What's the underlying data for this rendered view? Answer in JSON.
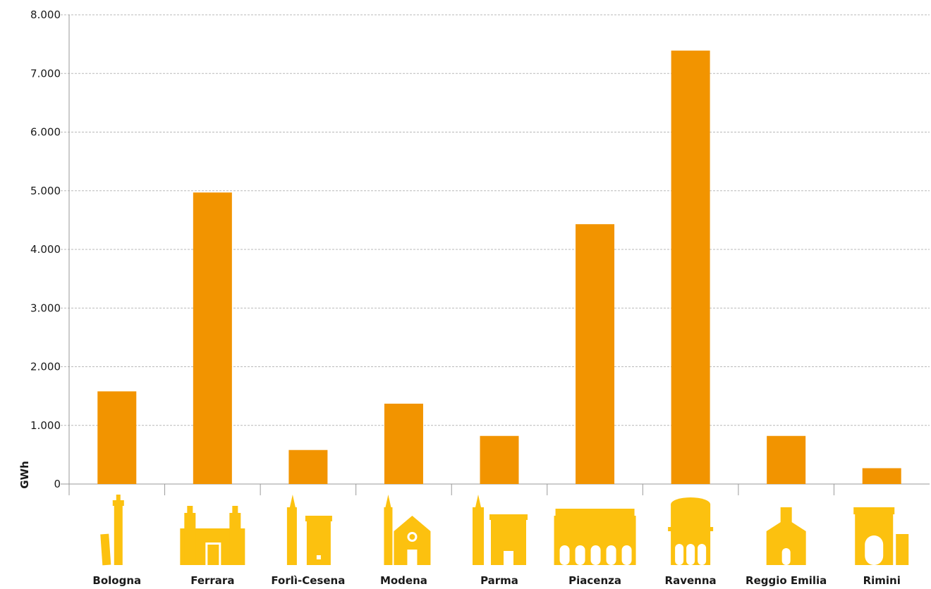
{
  "chart_data": {
    "type": "bar",
    "title": "",
    "xlabel": "",
    "ylabel": "GWh",
    "ylim": [
      0,
      8000
    ],
    "yticks": [
      0,
      1000,
      2000,
      3000,
      4000,
      5000,
      6000,
      7000,
      8000
    ],
    "ytick_labels": [
      "0",
      "1.000",
      "2.000",
      "3.000",
      "4.000",
      "5.000",
      "6.000",
      "7.000",
      "8.000"
    ],
    "grid": true,
    "legend": "none",
    "categories": [
      "Bologna",
      "Ferrara",
      "Forlì-Cesena",
      "Modena",
      "Parma",
      "Piacenza",
      "Ravenna",
      "Reggio Emilia",
      "Rimini"
    ],
    "values": [
      1580,
      4970,
      580,
      1370,
      820,
      4430,
      7390,
      820,
      270
    ],
    "icons": [
      "bologna-towers-icon",
      "ferrara-castle-icon",
      "forli-cesena-tower-icon",
      "modena-cathedral-icon",
      "parma-baptistery-icon",
      "piacenza-palazzo-icon",
      "ravenna-mausoleum-icon",
      "reggio-emilia-church-icon",
      "rimini-arch-icon"
    ]
  },
  "colors": {
    "bar": "#F29400",
    "icon": "#FCC10F",
    "grid": "#b9b9b9",
    "axis": "#9a9a9a",
    "text": "#1a1a1a"
  }
}
